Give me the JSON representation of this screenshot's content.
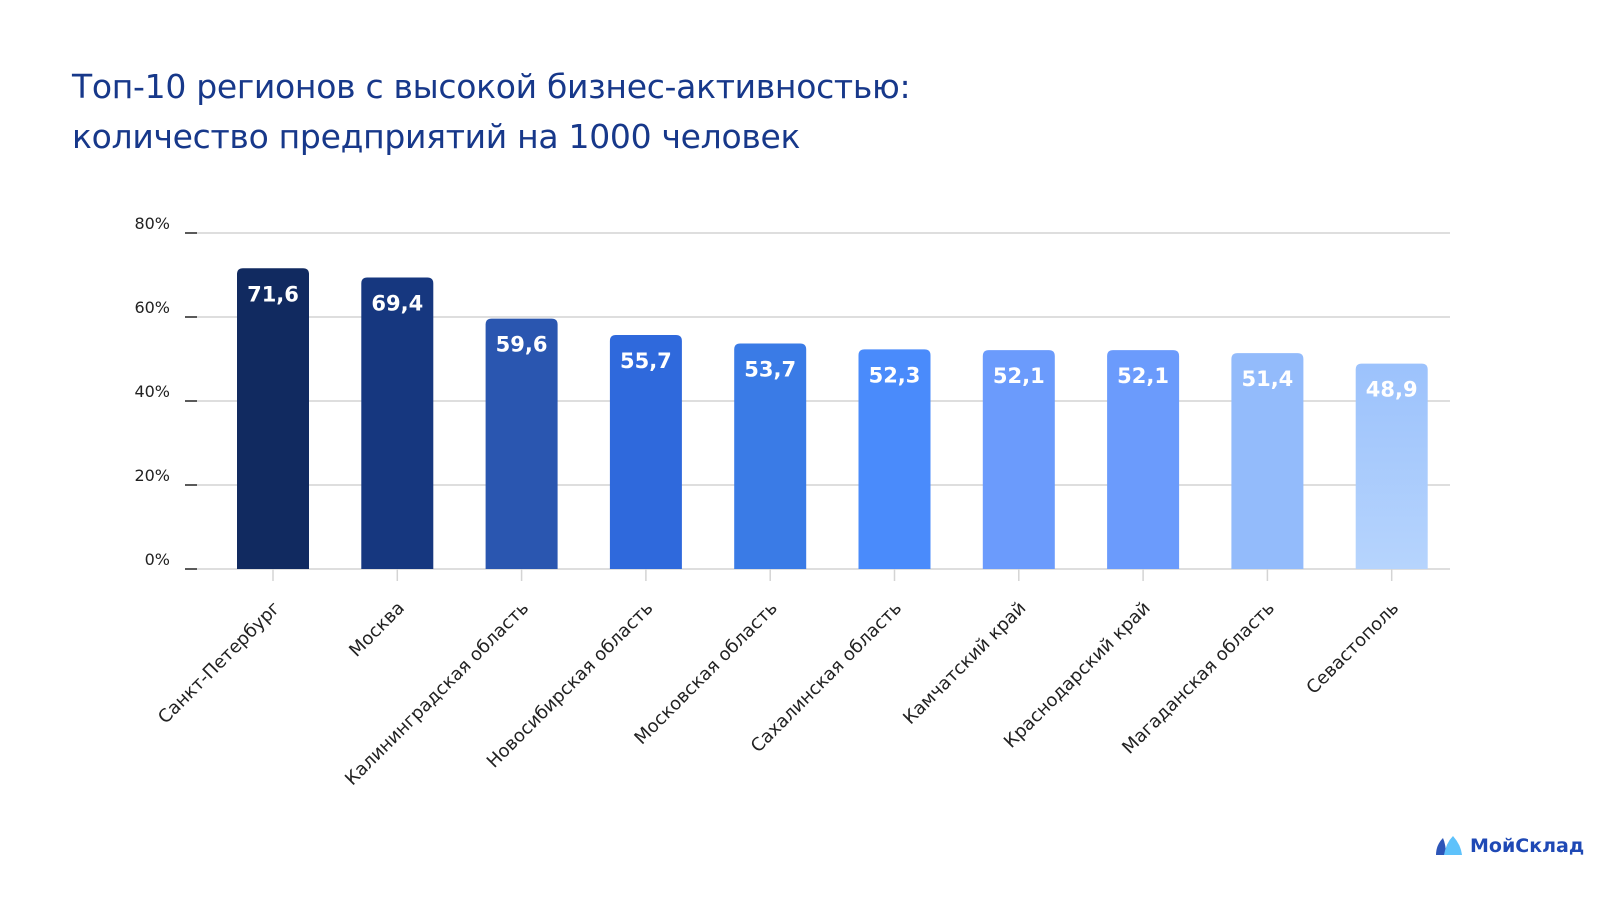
{
  "title": {
    "line1": "Топ-10 регионов с высокой бизнес-активностью:",
    "line2": "количество предприятий на 1000 человек"
  },
  "chart_data": {
    "type": "bar",
    "title": "Топ-10 регионов с высокой бизнес-активностью: количество предприятий на 1000 человек",
    "xlabel": "",
    "ylabel": "",
    "ylim": [
      0,
      80
    ],
    "yticks": [
      "0%",
      "20%",
      "40%",
      "60%",
      "80%"
    ],
    "ytick_values": [
      0,
      20,
      40,
      60,
      80
    ],
    "grid": true,
    "categories": [
      "Санкт-Петербург",
      "Москва",
      "Калининградская область",
      "Новосибирская область",
      "Московская область",
      "Сахалинская область",
      "Камчатский край",
      "Краснодарский край",
      "Магаданская область",
      "Севастополь"
    ],
    "values": [
      71.6,
      69.4,
      59.6,
      55.7,
      53.7,
      52.3,
      52.1,
      52.1,
      51.4,
      48.9
    ],
    "labels": [
      "71,6",
      "69,4",
      "59,6",
      "55,7",
      "53,7",
      "52,3",
      "52,1",
      "52,1",
      "51,4",
      "48,9"
    ],
    "colors": [
      "#112a60",
      "#16377f",
      "#2a56b0",
      "#2f69dc",
      "#3a7be6",
      "#4a8bfb",
      "#6b9bfc",
      "#6b9bfc",
      "#93bbfb",
      "#b3d1fd"
    ]
  },
  "brand": {
    "name": "МойСклад",
    "colors": [
      "#2c55b8",
      "#5ec2fb"
    ]
  }
}
